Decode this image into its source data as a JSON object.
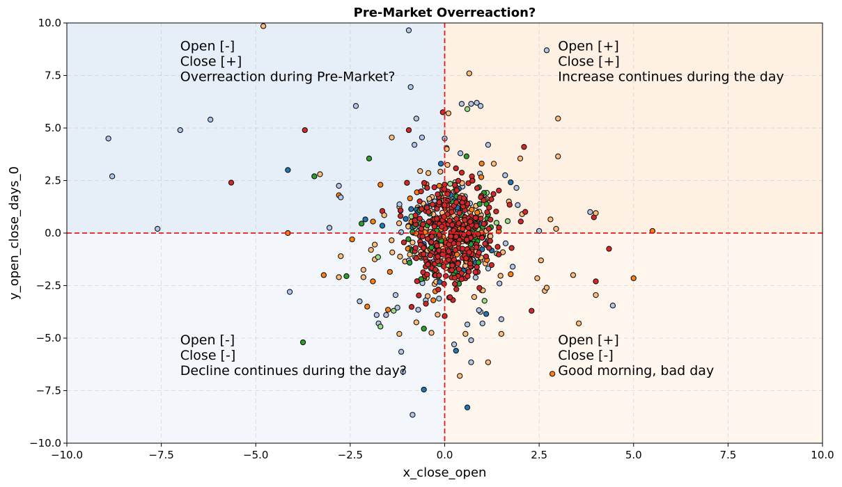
{
  "chart_data": {
    "type": "scatter",
    "title": "Pre-Market Overreaction?",
    "xlabel": "x_close_open",
    "ylabel": "y_open_close_days_0",
    "xlim": [
      -10,
      10
    ],
    "ylim": [
      -10,
      10
    ],
    "xticks": [
      -10,
      -7.5,
      -5,
      -2.5,
      0,
      2.5,
      5,
      7.5,
      10
    ],
    "yticks": [
      -10,
      -7.5,
      -5,
      -2.5,
      0,
      2.5,
      5,
      7.5,
      10
    ],
    "xtick_labels": [
      "−10.0",
      "−7.5",
      "−5.0",
      "−2.5",
      "0.0",
      "2.5",
      "5.0",
      "7.5",
      "10.0"
    ],
    "ytick_labels": [
      "−10.0",
      "−7.5",
      "−5.0",
      "−2.5",
      "0.0",
      "2.5",
      "5.0",
      "7.5",
      "10.0"
    ],
    "grid": true,
    "reference_lines": {
      "x": 0,
      "y": 0,
      "color": "#e31a1c",
      "style": "dashed"
    },
    "quadrants": [
      {
        "name": "top-left",
        "color": "#e6eef7",
        "lines": [
          "Open [-]",
          "Close [+]",
          "Overreaction during Pre-Market?"
        ],
        "text_at": [
          -7,
          8.7
        ]
      },
      {
        "name": "top-right",
        "color": "#fef0e3",
        "lines": [
          "Open [+]",
          "Close [+]",
          "Increase continues during the day"
        ],
        "text_at": [
          3,
          8.7
        ]
      },
      {
        "name": "bottom-left",
        "color": "#f3f7fb",
        "lines": [
          "Open [-]",
          "Close [-]",
          "Decline continues during the day?"
        ],
        "text_at": [
          -7,
          -5.3
        ]
      },
      {
        "name": "bottom-right",
        "color": "#fff6ee",
        "lines": [
          "Open [+]",
          "Close [-]",
          "Good morning, bad day"
        ],
        "text_at": [
          3,
          -5.3
        ]
      }
    ],
    "palette": {
      "light_blue": "#aec7e8",
      "blue": "#1f77b4",
      "light_orange": "#ffbb78",
      "orange": "#ff7f0e",
      "light_green": "#98df8a",
      "green": "#2ca02c",
      "red": "#d62728"
    },
    "points": [
      {
        "x": -8.9,
        "y": 4.5,
        "c": "light_blue"
      },
      {
        "x": -8.8,
        "y": 2.7,
        "c": "light_blue"
      },
      {
        "x": -7.6,
        "y": 0.2,
        "c": "light_blue"
      },
      {
        "x": -7.0,
        "y": 4.9,
        "c": "light_blue"
      },
      {
        "x": -6.2,
        "y": 5.4,
        "c": "light_blue"
      },
      {
        "x": -5.65,
        "y": 2.4,
        "c": "red"
      },
      {
        "x": -4.8,
        "y": 9.85,
        "c": "light_orange"
      },
      {
        "x": -4.15,
        "y": 3.0,
        "c": "blue"
      },
      {
        "x": -4.15,
        "y": 0.0,
        "c": "orange"
      },
      {
        "x": -4.1,
        "y": -2.8,
        "c": "light_blue"
      },
      {
        "x": -3.7,
        "y": 4.9,
        "c": "red"
      },
      {
        "x": -3.75,
        "y": -5.2,
        "c": "green"
      },
      {
        "x": -3.45,
        "y": 2.7,
        "c": "green"
      },
      {
        "x": -3.3,
        "y": 2.8,
        "c": "light_orange"
      },
      {
        "x": -3.2,
        "y": -2.0,
        "c": "orange"
      },
      {
        "x": -3.05,
        "y": 0.25,
        "c": "light_blue"
      },
      {
        "x": -2.8,
        "y": 2.25,
        "c": "light_blue"
      },
      {
        "x": -2.8,
        "y": 1.8,
        "c": "orange"
      },
      {
        "x": -2.75,
        "y": 1.7,
        "c": "light_blue"
      },
      {
        "x": -2.75,
        "y": -1.1,
        "c": "light_orange"
      },
      {
        "x": -2.8,
        "y": -2.1,
        "c": "light_orange"
      },
      {
        "x": -2.6,
        "y": -2.05,
        "c": "green"
      },
      {
        "x": -2.45,
        "y": -0.3,
        "c": "orange"
      },
      {
        "x": -2.35,
        "y": 6.05,
        "c": "light_blue"
      },
      {
        "x": -2.25,
        "y": -3.25,
        "c": "light_blue"
      },
      {
        "x": -2.2,
        "y": 0.45,
        "c": "green"
      },
      {
        "x": -2.15,
        "y": -1.75,
        "c": "light_orange"
      },
      {
        "x": -2.1,
        "y": 0.65,
        "c": "blue"
      },
      {
        "x": -2.15,
        "y": -2.1,
        "c": "light_orange"
      },
      {
        "x": -2.05,
        "y": -3.5,
        "c": "orange"
      },
      {
        "x": -2.0,
        "y": 3.55,
        "c": "green"
      },
      {
        "x": -1.95,
        "y": -0.8,
        "c": "light_orange"
      },
      {
        "x": -1.85,
        "y": -0.55,
        "c": "light_orange"
      },
      {
        "x": -1.85,
        "y": -1.25,
        "c": "light_orange"
      },
      {
        "x": -1.9,
        "y": -2.3,
        "c": "orange"
      },
      {
        "x": -1.8,
        "y": -3.9,
        "c": "light_blue"
      },
      {
        "x": -1.75,
        "y": -4.3,
        "c": "light_blue"
      },
      {
        "x": -1.7,
        "y": -4.45,
        "c": "light_green"
      },
      {
        "x": -1.7,
        "y": 2.3,
        "c": "orange"
      },
      {
        "x": -1.65,
        "y": 0.35,
        "c": "blue"
      },
      {
        "x": -1.65,
        "y": 1.05,
        "c": "red"
      },
      {
        "x": -1.6,
        "y": 0.85,
        "c": "light_orange"
      },
      {
        "x": -1.55,
        "y": -3.9,
        "c": "light_blue"
      },
      {
        "x": -1.5,
        "y": -3.65,
        "c": "orange"
      },
      {
        "x": -1.45,
        "y": -1.85,
        "c": "orange"
      },
      {
        "x": -1.4,
        "y": 4.55,
        "c": "light_orange"
      },
      {
        "x": -1.35,
        "y": -3.7,
        "c": "light_green"
      },
      {
        "x": -1.3,
        "y": -2.95,
        "c": "light_blue"
      },
      {
        "x": -1.25,
        "y": -3.55,
        "c": "light_blue"
      },
      {
        "x": -1.2,
        "y": -4.8,
        "c": "light_orange"
      },
      {
        "x": -1.2,
        "y": 1.25,
        "c": "light_orange"
      },
      {
        "x": -1.15,
        "y": -5.65,
        "c": "light_blue"
      },
      {
        "x": -1.1,
        "y": -6.6,
        "c": "light_blue"
      },
      {
        "x": -1.05,
        "y": -1.35,
        "c": "light_orange"
      },
      {
        "x": -0.95,
        "y": 9.65,
        "c": "light_blue"
      },
      {
        "x": -0.95,
        "y": 4.9,
        "c": "red"
      },
      {
        "x": -0.9,
        "y": 6.95,
        "c": "light_blue"
      },
      {
        "x": -0.85,
        "y": -8.65,
        "c": "light_blue"
      },
      {
        "x": -0.8,
        "y": 4.2,
        "c": "light_blue"
      },
      {
        "x": -0.75,
        "y": 5.45,
        "c": "light_blue"
      },
      {
        "x": -0.75,
        "y": -4.25,
        "c": "light_orange"
      },
      {
        "x": -0.7,
        "y": -3.65,
        "c": "light_blue"
      },
      {
        "x": -0.65,
        "y": 2.95,
        "c": "light_orange"
      },
      {
        "x": -0.6,
        "y": 4.55,
        "c": "light_blue"
      },
      {
        "x": -0.55,
        "y": -7.45,
        "c": "blue"
      },
      {
        "x": -0.55,
        "y": -4.55,
        "c": "green"
      },
      {
        "x": -0.5,
        "y": -3.2,
        "c": "light_blue"
      },
      {
        "x": -0.45,
        "y": -3.0,
        "c": "light_orange"
      },
      {
        "x": -0.35,
        "y": -4.75,
        "c": "light_orange"
      },
      {
        "x": -0.3,
        "y": -3.2,
        "c": "orange"
      },
      {
        "x": -0.25,
        "y": -1.75,
        "c": "orange"
      },
      {
        "x": -0.1,
        "y": 3.3,
        "c": "blue"
      },
      {
        "x": -0.05,
        "y": 5.75,
        "c": "red"
      },
      {
        "x": 0.0,
        "y": 4.5,
        "c": "light_blue"
      },
      {
        "x": 0.0,
        "y": -3.95,
        "c": "red"
      },
      {
        "x": 0.05,
        "y": 4.05,
        "c": "light_blue"
      },
      {
        "x": 0.1,
        "y": 5.7,
        "c": "light_orange"
      },
      {
        "x": 0.25,
        "y": -5.3,
        "c": "light_blue"
      },
      {
        "x": 0.3,
        "y": -5.6,
        "c": "blue"
      },
      {
        "x": 0.4,
        "y": -6.8,
        "c": "light_orange"
      },
      {
        "x": 0.45,
        "y": 6.15,
        "c": "light_blue"
      },
      {
        "x": 0.55,
        "y": -4.8,
        "c": "light_orange"
      },
      {
        "x": 0.6,
        "y": 5.9,
        "c": "light_green"
      },
      {
        "x": 0.6,
        "y": -4.35,
        "c": "light_blue"
      },
      {
        "x": 0.6,
        "y": -8.3,
        "c": "blue"
      },
      {
        "x": 0.65,
        "y": 7.6,
        "c": "light_orange"
      },
      {
        "x": 0.7,
        "y": 6.15,
        "c": "light_blue"
      },
      {
        "x": 0.7,
        "y": -6.15,
        "c": "light_blue"
      },
      {
        "x": 0.7,
        "y": -5.1,
        "c": "light_blue"
      },
      {
        "x": 0.85,
        "y": 6.2,
        "c": "light_blue"
      },
      {
        "x": 0.95,
        "y": 6.05,
        "c": "light_blue"
      },
      {
        "x": 0.95,
        "y": -3.75,
        "c": "light_blue"
      },
      {
        "x": 1.0,
        "y": -4.3,
        "c": "light_blue"
      },
      {
        "x": 1.1,
        "y": -3.85,
        "c": "blue"
      },
      {
        "x": 1.15,
        "y": 4.2,
        "c": "light_blue"
      },
      {
        "x": 1.15,
        "y": -6.15,
        "c": "light_orange"
      },
      {
        "x": 1.3,
        "y": 3.3,
        "c": "light_orange"
      },
      {
        "x": 1.45,
        "y": -2.4,
        "c": "light_blue"
      },
      {
        "x": 1.5,
        "y": -4.8,
        "c": "light_orange"
      },
      {
        "x": 1.5,
        "y": -4.1,
        "c": "light_blue"
      },
      {
        "x": 1.6,
        "y": 2.75,
        "c": "light_blue"
      },
      {
        "x": 1.7,
        "y": 1.5,
        "c": "light_orange"
      },
      {
        "x": 1.8,
        "y": -1.6,
        "c": "light_blue"
      },
      {
        "x": 1.9,
        "y": 2.15,
        "c": "light_blue"
      },
      {
        "x": 2.0,
        "y": 3.55,
        "c": "light_orange"
      },
      {
        "x": 2.05,
        "y": 0.9,
        "c": "light_orange"
      },
      {
        "x": 2.1,
        "y": 4.1,
        "c": "red"
      },
      {
        "x": 2.3,
        "y": -3.7,
        "c": "red"
      },
      {
        "x": 2.45,
        "y": -2.15,
        "c": "light_orange"
      },
      {
        "x": 2.5,
        "y": 0.1,
        "c": "light_blue"
      },
      {
        "x": 2.55,
        "y": -1.3,
        "c": "light_orange"
      },
      {
        "x": 2.65,
        "y": -2.75,
        "c": "light_orange"
      },
      {
        "x": 2.7,
        "y": -2.6,
        "c": "light_orange"
      },
      {
        "x": 2.7,
        "y": 8.7,
        "c": "light_blue"
      },
      {
        "x": 2.8,
        "y": 0.65,
        "c": "light_orange"
      },
      {
        "x": 2.85,
        "y": -6.7,
        "c": "orange"
      },
      {
        "x": 2.95,
        "y": 0.2,
        "c": "light_orange"
      },
      {
        "x": 3.0,
        "y": 3.65,
        "c": "light_orange"
      },
      {
        "x": 3.0,
        "y": 5.45,
        "c": "light_orange"
      },
      {
        "x": 3.4,
        "y": -2.0,
        "c": "light_orange"
      },
      {
        "x": 3.55,
        "y": -4.3,
        "c": "light_orange"
      },
      {
        "x": 3.85,
        "y": 1.0,
        "c": "light_blue"
      },
      {
        "x": 3.95,
        "y": 0.75,
        "c": "red"
      },
      {
        "x": 4.0,
        "y": 0.95,
        "c": "light_orange"
      },
      {
        "x": 4.0,
        "y": -2.3,
        "c": "red"
      },
      {
        "x": 4.0,
        "y": -2.95,
        "c": "light_orange"
      },
      {
        "x": 4.35,
        "y": -0.75,
        "c": "red"
      },
      {
        "x": 4.45,
        "y": -3.45,
        "c": "light_blue"
      },
      {
        "x": 5.0,
        "y": -2.15,
        "c": "orange"
      },
      {
        "x": 5.5,
        "y": 0.1,
        "c": "orange"
      }
    ],
    "cluster": {
      "center": [
        0.2,
        0.0
      ],
      "count": 700,
      "spread_x": 0.6,
      "spread_y": 1.3,
      "weights": {
        "red": 0.42,
        "light_orange": 0.2,
        "light_blue": 0.12,
        "green": 0.1,
        "orange": 0.07,
        "light_green": 0.05,
        "blue": 0.04
      }
    }
  }
}
